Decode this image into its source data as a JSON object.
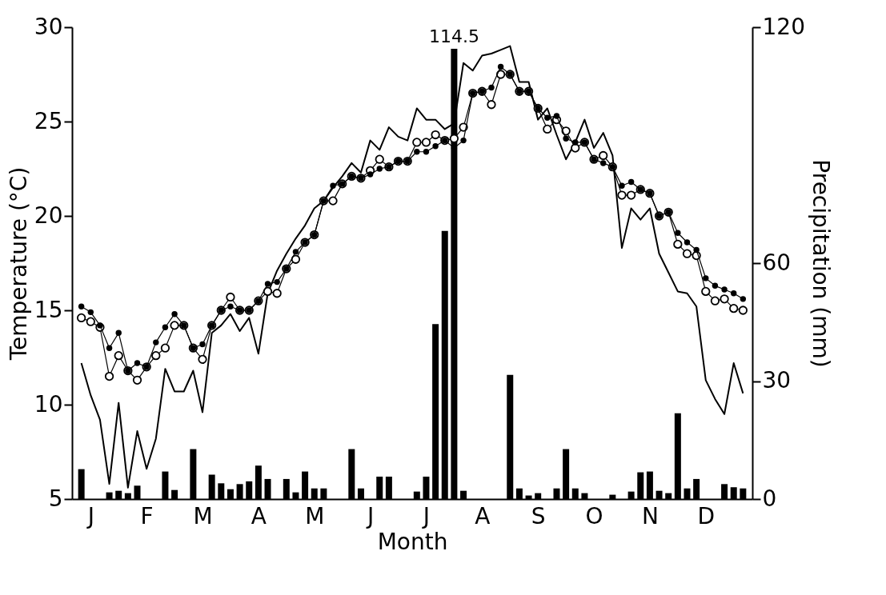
{
  "chart_data": {
    "type": "line",
    "xlabel": "Month",
    "ylabel": "Temperature (°C)",
    "y2label": "Precipitation (mm)",
    "categories": [
      null,
      "J",
      null,
      null,
      null,
      null,
      null,
      "F",
      null,
      null,
      null,
      null,
      null,
      "M",
      null,
      null,
      null,
      null,
      null,
      "A",
      null,
      null,
      null,
      null,
      null,
      "M",
      null,
      null,
      null,
      null,
      null,
      "J",
      null,
      null,
      null,
      null,
      null,
      "J",
      null,
      null,
      null,
      null,
      null,
      "A",
      null,
      null,
      null,
      null,
      null,
      "S",
      null,
      null,
      null,
      null,
      null,
      "O",
      null,
      null,
      null,
      null,
      null,
      "N",
      null,
      null,
      null,
      null,
      null,
      "D",
      null,
      null,
      null,
      null
    ],
    "ylim": [
      5,
      30
    ],
    "yticks": [
      5,
      10,
      15,
      20,
      25,
      30
    ],
    "y2lim": [
      0,
      120
    ],
    "y2ticks": [
      0,
      30,
      60,
      120
    ],
    "grid": false,
    "series": [
      {
        "color": "#000000",
        "marker": "none",
        "line_style": "solid",
        "values": [
          12.2,
          10.5,
          9.2,
          5.8,
          10.1,
          5.6,
          8.6,
          6.6,
          8.2,
          11.9,
          10.7,
          10.7,
          11.8,
          9.6,
          13.8,
          14.2,
          14.8,
          13.9,
          14.6,
          12.7,
          15.9,
          17.1,
          18.0,
          18.8,
          19.5,
          20.4,
          20.8,
          21.5,
          22.1,
          22.8,
          22.3,
          24.0,
          23.5,
          24.7,
          24.2,
          24.0,
          25.7,
          25.1,
          25.1,
          24.6,
          24.9,
          28.1,
          27.7,
          28.5,
          28.6,
          28.8,
          29.0,
          27.1,
          27.1,
          25.1,
          25.7,
          24.3,
          23.0,
          23.9,
          25.1,
          23.6,
          24.4,
          23.2,
          18.3,
          20.4,
          19.8,
          20.4,
          18.0,
          17.0,
          16.0,
          15.9,
          15.2,
          11.3,
          10.3,
          9.5,
          12.2,
          10.6
        ]
      },
      {
        "color": "#ffffff",
        "marker": "circle",
        "line_style": "solid",
        "values": [
          14.6,
          14.4,
          14.1,
          11.5,
          12.6,
          11.8,
          11.3,
          12.0,
          12.6,
          13.0,
          14.2,
          14.2,
          13.0,
          12.4,
          14.2,
          15.0,
          15.7,
          15.0,
          15.0,
          15.5,
          16.0,
          15.9,
          17.2,
          17.7,
          18.6,
          19.0,
          20.8,
          20.8,
          21.7,
          22.1,
          22.0,
          22.4,
          23.0,
          22.6,
          22.9,
          22.9,
          23.9,
          23.9,
          24.3,
          24.0,
          24.1,
          24.7,
          26.5,
          26.6,
          25.9,
          27.5,
          27.5,
          26.6,
          26.6,
          25.7,
          24.6,
          25.1,
          24.5,
          23.6,
          23.9,
          23.0,
          23.2,
          22.6,
          21.1,
          21.1,
          21.4,
          21.2,
          20.0,
          20.2,
          18.5,
          18.0,
          17.9,
          16.0,
          15.5,
          15.6,
          15.1,
          15.0
        ]
      },
      {
        "color": "#000000",
        "marker": "circle",
        "line_style": "solid",
        "values": [
          15.2,
          14.9,
          14.2,
          13.0,
          13.8,
          11.8,
          12.2,
          12.0,
          13.3,
          14.1,
          14.8,
          14.2,
          13.0,
          13.2,
          14.2,
          15.0,
          15.2,
          15.0,
          15.0,
          15.5,
          16.4,
          16.5,
          17.2,
          18.1,
          18.6,
          19.0,
          20.8,
          21.6,
          21.7,
          22.1,
          22.0,
          22.2,
          22.5,
          22.6,
          22.9,
          22.9,
          23.4,
          23.4,
          23.7,
          24.0,
          23.6,
          24.0,
          26.5,
          26.6,
          26.8,
          27.9,
          27.5,
          26.6,
          26.6,
          25.7,
          25.2,
          25.3,
          24.1,
          23.9,
          23.9,
          23.0,
          22.8,
          22.6,
          21.6,
          21.8,
          21.4,
          21.2,
          20.0,
          20.2,
          19.1,
          18.6,
          18.2,
          16.7,
          16.3,
          16.1,
          15.9,
          15.6
        ]
      },
      {
        "type": "bar",
        "axis": "y2",
        "color": "#000000",
        "values": [
          7.6,
          null,
          null,
          1.7,
          2.1,
          1.5,
          3.4,
          null,
          null,
          7.0,
          2.3,
          null,
          12.7,
          null,
          6.2,
          4.0,
          2.5,
          3.8,
          4.5,
          8.5,
          5.1,
          null,
          5.1,
          1.7,
          7.0,
          2.7,
          2.7,
          null,
          null,
          12.7,
          2.7,
          null,
          5.7,
          5.7,
          null,
          null,
          1.9,
          5.7,
          44.5,
          68.2,
          114.5,
          2.1,
          null,
          null,
          null,
          null,
          31.6,
          2.7,
          0.9,
          1.5,
          null,
          2.7,
          12.7,
          2.7,
          1.5,
          null,
          null,
          1.1,
          null,
          1.9,
          6.8,
          7.0,
          2.1,
          1.5,
          21.8,
          2.7,
          5.1,
          null,
          null,
          3.8,
          3.0,
          2.7
        ],
        "value_labels": [
          null,
          null,
          null,
          null,
          null,
          null,
          null,
          null,
          null,
          null,
          null,
          null,
          null,
          null,
          null,
          null,
          null,
          null,
          null,
          null,
          null,
          null,
          null,
          null,
          null,
          null,
          null,
          null,
          null,
          null,
          null,
          null,
          null,
          null,
          null,
          null,
          null,
          null,
          null,
          null,
          "114.5",
          null,
          null,
          null,
          null,
          null,
          null,
          null,
          null,
          null,
          null,
          null,
          null,
          null,
          null,
          null,
          null,
          null,
          null,
          null,
          null,
          null,
          null,
          null,
          null,
          null,
          null,
          null,
          null,
          null,
          null,
          null
        ]
      }
    ]
  }
}
